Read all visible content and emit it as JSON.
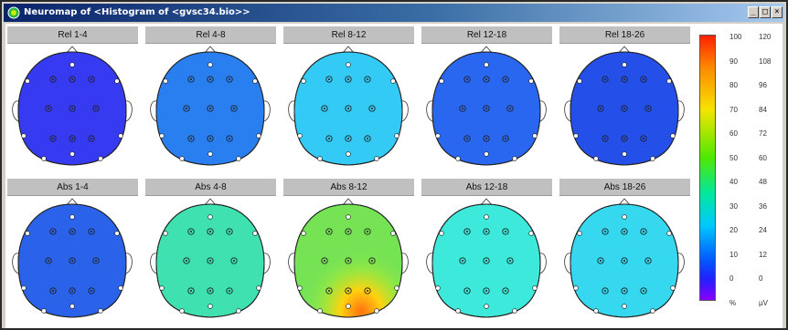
{
  "window": {
    "title": "Neuromap of <Histogram of <gvsc34.bio>>",
    "buttons": [
      "_",
      "□",
      "×"
    ]
  },
  "rows": [
    {
      "panels": [
        {
          "label": "Rel 1-4"
        },
        {
          "label": "Rel 4-8"
        },
        {
          "label": "Rel 8-12"
        },
        {
          "label": "Rel 12-18"
        },
        {
          "label": "Rel 18-26"
        }
      ]
    },
    {
      "panels": [
        {
          "label": "Abs 1-4"
        },
        {
          "label": "Abs 4-8"
        },
        {
          "label": "Abs 8-12"
        },
        {
          "label": "Abs 12-18"
        },
        {
          "label": "Abs 18-26"
        }
      ]
    }
  ],
  "colors": {
    "rel14": "#2a2ef0",
    "rel48": "#1c78f0",
    "rel812": "#27c8f5",
    "rel1218": "#1d5ef0",
    "rel1826": "#1744e8",
    "abs14": "#1d5ae8",
    "abs48": "#33e0ac",
    "abs812": "#6ee24a",
    "abs1218": "#30e8d8",
    "abs1826": "#2ad6ee"
  },
  "scale": {
    "left_ticks": [
      "100",
      "90",
      "80",
      "70",
      "60",
      "50",
      "40",
      "30",
      "20",
      "10",
      "0",
      "%"
    ],
    "right_ticks": [
      "120",
      "108",
      "96",
      "84",
      "72",
      "60",
      "48",
      "36",
      "24",
      "12",
      "0",
      "µV"
    ]
  }
}
